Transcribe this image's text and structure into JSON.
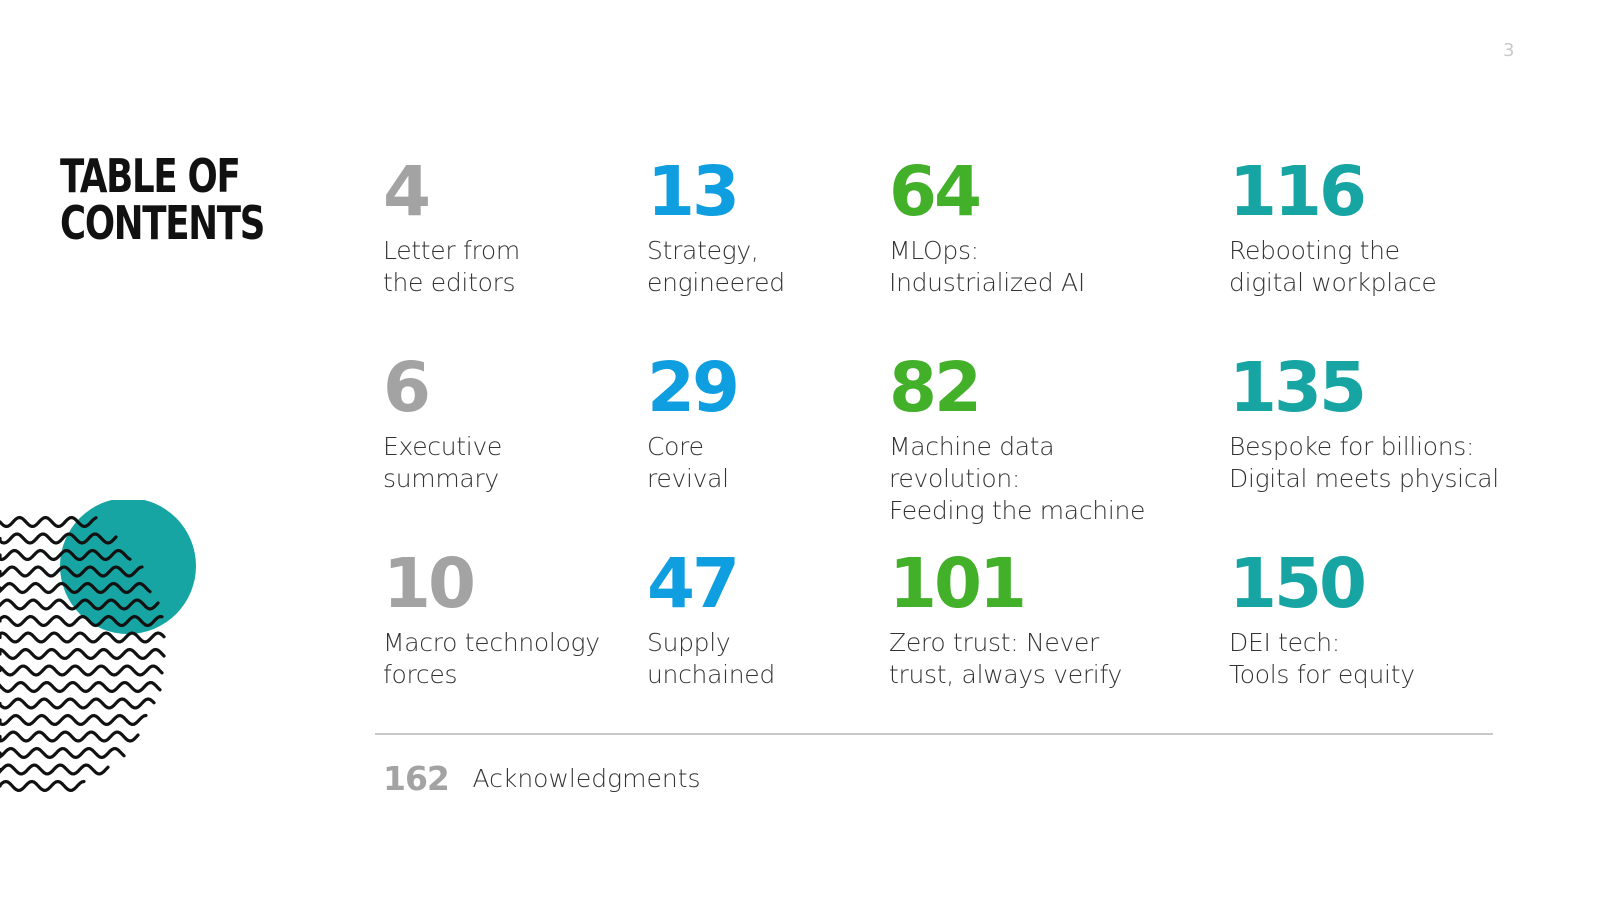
{
  "page_number": "3",
  "title": {
    "line1": "TABLE OF",
    "line2": "CONTENTS"
  },
  "entries": [
    {
      "page": "4",
      "title": "Letter from\nthe editors"
    },
    {
      "page": "13",
      "title": "Strategy,\nengineered"
    },
    {
      "page": "64",
      "title": "MLOps:\nIndustrialized AI"
    },
    {
      "page": "116",
      "title": "Rebooting the\ndigital workplace"
    },
    {
      "page": "6",
      "title": "Executive\nsummary"
    },
    {
      "page": "29",
      "title": "Core\nrevival"
    },
    {
      "page": "82",
      "title": "Machine data revolution:\nFeeding the machine"
    },
    {
      "page": "135",
      "title": "Bespoke for billions:\nDigital meets physical"
    },
    {
      "page": "10",
      "title": "Macro technology\nforces"
    },
    {
      "page": "47",
      "title": "Supply\nunchained"
    },
    {
      "page": "101",
      "title": "Zero trust: Never\ntrust, always verify"
    },
    {
      "page": "150",
      "title": "DEI tech:\nTools for equity"
    }
  ],
  "acknowledgments": {
    "page": "162",
    "title": "Acknowledgments"
  },
  "colors": {
    "column1": "#a3a3a3",
    "column2": "#0f9fe0",
    "column3": "#43b02a",
    "column4": "#17a5a3",
    "decor_circle": "#17a5a3"
  }
}
